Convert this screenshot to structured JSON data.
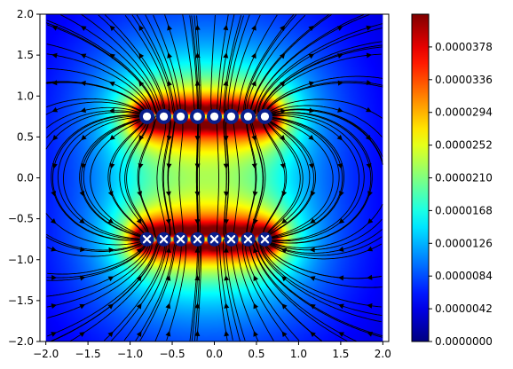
{
  "chart_data": {
    "type": "heatmap",
    "title": "",
    "xlabel": "",
    "ylabel": "",
    "xlim": [
      -2.07,
      2.07
    ],
    "ylim": [
      -2.0,
      2.0
    ],
    "x_ticks": [
      "−2.0",
      "−1.5",
      "−1.0",
      "−0.5",
      "0.0",
      "0.5",
      "1.0",
      "1.5",
      "2.0"
    ],
    "x_tick_values": [
      -2.0,
      -1.5,
      -1.0,
      -0.5,
      0.0,
      0.5,
      1.0,
      1.5,
      2.0
    ],
    "y_ticks": [
      "2.0",
      "1.5",
      "1.0",
      "0.5",
      "0.0",
      "−0.5",
      "−1.0",
      "−1.5",
      "−2.0"
    ],
    "y_tick_values": [
      2.0,
      1.5,
      1.0,
      0.5,
      0.0,
      -0.5,
      -1.0,
      -1.5,
      -2.0
    ],
    "heatmap_extent": {
      "x": [
        -2.0,
        2.0
      ],
      "y": [
        -2.0,
        2.0
      ]
    },
    "colormap": "jet",
    "colorbar": {
      "min": 0.0,
      "max": 4.2e-05,
      "tick_values": [
        0.0,
        4.2e-06,
        8.4e-06,
        1.26e-05,
        1.68e-05,
        2.1e-05,
        2.52e-05,
        2.94e-05,
        3.36e-05,
        3.78e-05
      ],
      "tick_labels": [
        "0.0000000",
        "0.0000042",
        "0.0000084",
        "0.0000126",
        "0.0000168",
        "0.0000210",
        "0.0000252",
        "0.0000294",
        "0.0000336",
        "0.0000378"
      ]
    },
    "positive_charges": {
      "marker": "circle",
      "y": 0.75,
      "x": [
        -0.8,
        -0.6,
        -0.4,
        -0.2,
        0.0,
        0.2,
        0.4,
        0.6
      ]
    },
    "negative_charges": {
      "marker": "x",
      "y": -0.75,
      "x": [
        -0.8,
        -0.6,
        -0.4,
        -0.2,
        0.0,
        0.2,
        0.4,
        0.6
      ]
    },
    "streamlines": {
      "shown": true,
      "color": "#000000"
    },
    "grid": false,
    "legend": "none"
  }
}
